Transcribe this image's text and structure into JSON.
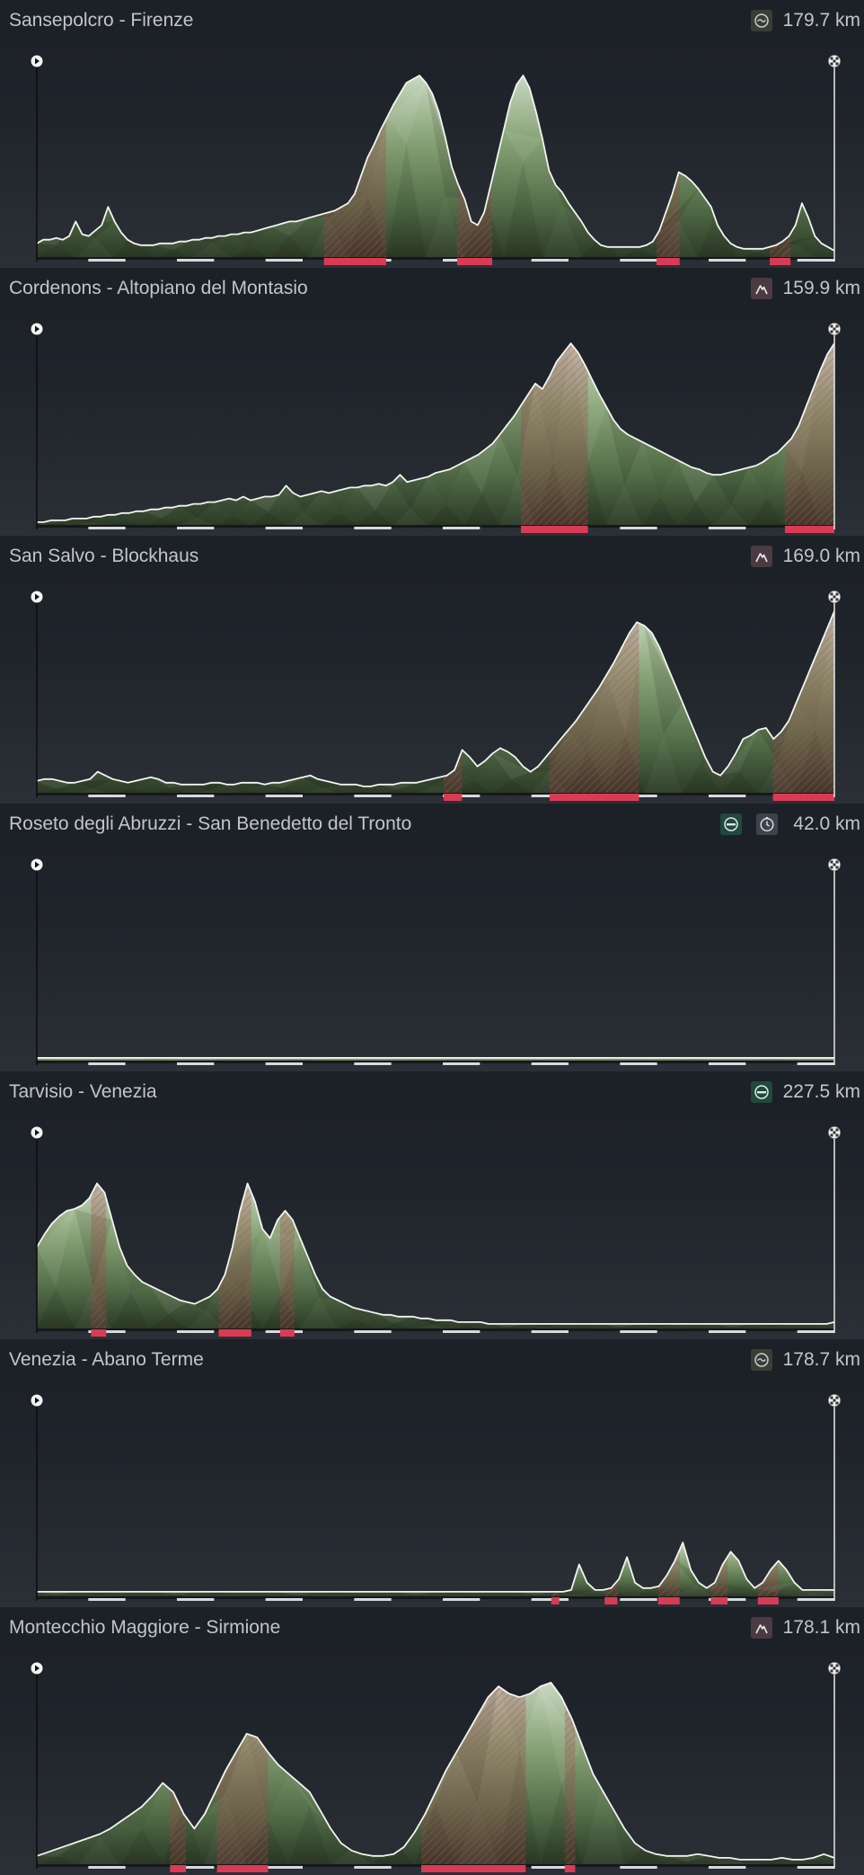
{
  "stages": [
    {
      "title": "Sansepolcro - Firenze",
      "distance": "179.7 km",
      "badges": [
        {
          "type": "flat-icon"
        }
      ],
      "profile": [
        8,
        10,
        10,
        11,
        10,
        12,
        20,
        13,
        12,
        15,
        18,
        28,
        20,
        14,
        10,
        8,
        7,
        7,
        7,
        8,
        8,
        8,
        9,
        9,
        10,
        10,
        11,
        11,
        12,
        12,
        13,
        13,
        14,
        14,
        15,
        16,
        17,
        18,
        19,
        20,
        20,
        21,
        22,
        23,
        24,
        25,
        26,
        28,
        30,
        35,
        45,
        55,
        62,
        70,
        77,
        84,
        90,
        96,
        98,
        100,
        96,
        90,
        80,
        66,
        50,
        40,
        32,
        20,
        18,
        25,
        40,
        55,
        70,
        85,
        95,
        100,
        93,
        80,
        65,
        48,
        40,
        36,
        30,
        25,
        20,
        14,
        10,
        7,
        6,
        6,
        6,
        6,
        6,
        6,
        7,
        9,
        15,
        25,
        35,
        47,
        45,
        42,
        38,
        33,
        28,
        18,
        12,
        8,
        6,
        5,
        5,
        5,
        5,
        6,
        7,
        9,
        12,
        18,
        30,
        22,
        12,
        8,
        6,
        4
      ],
      "climbs": [
        [
          0.36,
          0.438
        ],
        [
          0.527,
          0.571
        ],
        [
          0.777,
          0.806
        ],
        [
          0.919,
          0.945
        ]
      ],
      "cols": [
        [
          0.36,
          0.438,
          0.85
        ],
        [
          0.527,
          0.571,
          0.72
        ],
        [
          0.777,
          0.806,
          0.55
        ],
        [
          0.919,
          0.945,
          0.42
        ]
      ]
    },
    {
      "title": "Cordenons - Altopiano del Montasio",
      "distance": "159.9 km",
      "badges": [
        {
          "type": "mountain-icon"
        }
      ],
      "profile": [
        2,
        2,
        3,
        3,
        3,
        4,
        4,
        4,
        5,
        5,
        6,
        6,
        7,
        7,
        8,
        8,
        9,
        9,
        10,
        10,
        11,
        11,
        12,
        12,
        13,
        13,
        14,
        15,
        14,
        16,
        14,
        15,
        16,
        16,
        17,
        22,
        18,
        16,
        17,
        18,
        19,
        18,
        19,
        20,
        21,
        21,
        22,
        22,
        23,
        22,
        24,
        28,
        24,
        25,
        26,
        27,
        29,
        30,
        31,
        33,
        35,
        37,
        39,
        42,
        45,
        50,
        55,
        60,
        66,
        72,
        78,
        75,
        82,
        90,
        95,
        100,
        95,
        88,
        80,
        72,
        65,
        58,
        53,
        50,
        48,
        46,
        44,
        42,
        40,
        38,
        36,
        34,
        32,
        31,
        29,
        28,
        28,
        29,
        30,
        31,
        32,
        33,
        35,
        38,
        40,
        44,
        48,
        55,
        65,
        75,
        85,
        94,
        100
      ],
      "climbs": [
        [
          0.607,
          0.691
        ],
        [
          0.938,
          1.0
        ]
      ],
      "cols": [
        [
          0.607,
          0.691,
          0.6
        ],
        [
          0.938,
          1.0,
          0.75
        ]
      ]
    },
    {
      "title": "San Salvo - Blockhaus",
      "distance": "169.0 km",
      "badges": [
        {
          "type": "mountain-icon"
        }
      ],
      "profile": [
        7,
        8,
        8,
        7,
        6,
        6,
        7,
        8,
        12,
        10,
        8,
        7,
        6,
        7,
        8,
        9,
        8,
        6,
        6,
        5,
        5,
        5,
        5,
        6,
        6,
        5,
        5,
        6,
        6,
        6,
        5,
        6,
        6,
        7,
        8,
        9,
        10,
        8,
        7,
        6,
        5,
        5,
        5,
        4,
        4,
        5,
        5,
        5,
        6,
        6,
        6,
        7,
        8,
        9,
        10,
        13,
        24,
        20,
        15,
        18,
        22,
        25,
        23,
        20,
        15,
        12,
        15,
        20,
        25,
        30,
        35,
        40,
        46,
        52,
        58,
        65,
        72,
        80,
        88,
        94,
        92,
        88,
        80,
        70,
        60,
        50,
        40,
        30,
        20,
        12,
        10,
        15,
        22,
        30,
        32,
        35,
        36,
        30,
        34,
        40,
        50,
        60,
        70,
        80,
        90,
        100
      ],
      "climbs": [
        [
          0.51,
          0.533
        ],
        [
          0.643,
          0.755
        ],
        [
          0.923,
          1.0
        ]
      ],
      "cols": [
        [
          0.51,
          0.533,
          0.45
        ],
        [
          0.643,
          0.755,
          0.6
        ],
        [
          0.923,
          1.0,
          0.7
        ]
      ]
    },
    {
      "title": "Roseto degli Abruzzi - San Benedetto del Tronto",
      "distance": "42.0 km",
      "badges": [
        {
          "type": "sprint-icon"
        },
        {
          "type": "time-trial-icon"
        }
      ],
      "profile": [
        2,
        2,
        2,
        2,
        2,
        2,
        2,
        2,
        2,
        2,
        2,
        2,
        2,
        2,
        2,
        2,
        2,
        2,
        2,
        2,
        2,
        2,
        2,
        2,
        2,
        2,
        2,
        2,
        2,
        2,
        2,
        2
      ],
      "climbs": [],
      "cols": []
    },
    {
      "title": "Tarvisio - Venezia",
      "distance": "227.5 km",
      "badges": [
        {
          "type": "sprint-icon"
        }
      ],
      "profile": [
        45,
        52,
        58,
        62,
        65,
        66,
        68,
        72,
        80,
        75,
        60,
        45,
        35,
        30,
        26,
        24,
        22,
        20,
        18,
        16,
        15,
        14,
        16,
        18,
        22,
        30,
        45,
        65,
        80,
        70,
        55,
        50,
        60,
        65,
        60,
        50,
        40,
        30,
        22,
        18,
        16,
        14,
        12,
        11,
        10,
        9,
        8,
        8,
        7,
        7,
        7,
        6,
        6,
        5,
        5,
        5,
        4,
        4,
        4,
        4,
        3,
        3,
        3,
        3,
        3,
        3,
        3,
        3,
        3,
        3,
        3,
        3,
        3,
        3,
        3,
        3,
        3,
        3,
        3,
        3,
        3,
        3,
        3,
        3,
        3,
        3,
        3,
        3,
        3,
        3,
        3,
        3,
        3,
        3,
        3,
        3,
        3,
        3,
        3,
        3,
        3,
        3,
        3,
        3,
        3,
        3,
        4
      ],
      "climbs": [
        [
          0.068,
          0.087
        ],
        [
          0.228,
          0.269
        ],
        [
          0.305,
          0.323
        ]
      ],
      "cols": [
        [
          0.068,
          0.087,
          0.65
        ],
        [
          0.228,
          0.269,
          0.55
        ],
        [
          0.305,
          0.323,
          0.45
        ]
      ]
    },
    {
      "title": "Venezia - Abano Terme",
      "distance": "178.7 km",
      "badges": [
        {
          "type": "flat-icon"
        }
      ],
      "profile": [
        3,
        3,
        3,
        3,
        3,
        3,
        3,
        3,
        3,
        3,
        3,
        3,
        3,
        3,
        3,
        3,
        3,
        3,
        3,
        3,
        3,
        3,
        3,
        3,
        3,
        3,
        3,
        3,
        3,
        3,
        3,
        3,
        3,
        3,
        3,
        3,
        3,
        3,
        3,
        3,
        3,
        3,
        3,
        3,
        3,
        3,
        3,
        3,
        3,
        3,
        3,
        3,
        3,
        3,
        3,
        3,
        3,
        3,
        3,
        3,
        3,
        3,
        3,
        3,
        3,
        3,
        3,
        4,
        18,
        8,
        4,
        4,
        5,
        10,
        22,
        8,
        5,
        5,
        6,
        12,
        20,
        30,
        15,
        8,
        5,
        8,
        18,
        25,
        20,
        10,
        5,
        8,
        15,
        20,
        15,
        8,
        4,
        4,
        4,
        4,
        4
      ],
      "climbs": [
        [
          0.645,
          0.655
        ],
        [
          0.712,
          0.728
        ],
        [
          0.779,
          0.806
        ],
        [
          0.845,
          0.866
        ],
        [
          0.904,
          0.93
        ]
      ],
      "cols": [
        [
          0.645,
          0.655,
          0.22
        ],
        [
          0.712,
          0.728,
          0.25
        ],
        [
          0.779,
          0.806,
          0.3
        ],
        [
          0.845,
          0.866,
          0.25
        ],
        [
          0.904,
          0.93,
          0.2
        ]
      ]
    },
    {
      "title": "Montecchio Maggiore - Sirmione",
      "distance": "178.1 km",
      "badges": [
        {
          "type": "mountain-icon"
        }
      ],
      "profile": [
        5,
        7,
        9,
        11,
        13,
        15,
        17,
        20,
        24,
        28,
        32,
        38,
        45,
        40,
        28,
        20,
        28,
        40,
        52,
        62,
        72,
        70,
        62,
        55,
        50,
        45,
        40,
        30,
        20,
        12,
        8,
        6,
        5,
        5,
        6,
        10,
        18,
        28,
        40,
        52,
        62,
        72,
        82,
        92,
        98,
        94,
        92,
        94,
        98,
        100,
        92,
        80,
        65,
        50,
        40,
        30,
        20,
        12,
        8,
        6,
        5,
        5,
        5,
        6,
        5,
        4,
        4,
        3,
        3,
        3,
        3,
        4,
        3,
        3,
        4,
        6,
        4
      ],
      "climbs": [
        [
          0.167,
          0.187
        ],
        [
          0.226,
          0.29
        ],
        [
          0.482,
          0.613
        ],
        [
          0.662,
          0.675
        ]
      ],
      "cols": [
        [
          0.167,
          0.187,
          0.45
        ],
        [
          0.226,
          0.29,
          0.72
        ],
        [
          0.482,
          0.613,
          0.95
        ],
        [
          0.662,
          0.675,
          0.3
        ]
      ]
    }
  ]
}
